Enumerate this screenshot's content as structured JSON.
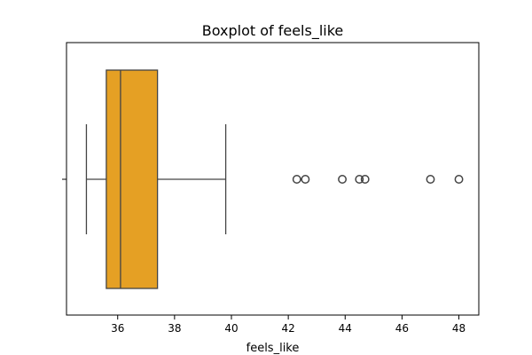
{
  "chart_data": {
    "type": "box",
    "title": "Boxplot of feels_like",
    "xlabel": "feels_like",
    "ylabel": "",
    "orientation": "horizontal",
    "xlim": [
      34.2,
      48.7
    ],
    "x_ticks": [
      36,
      38,
      40,
      42,
      44,
      46,
      48
    ],
    "box": {
      "whisker_low": 34.9,
      "q1": 35.6,
      "median": 36.1,
      "q3": 37.4,
      "whisker_high": 39.8
    },
    "outliers": [
      42.3,
      42.6,
      43.9,
      44.5,
      44.7,
      47.0,
      48.0
    ],
    "colors": {
      "box_fill": "#e5a024",
      "line": "#444444",
      "frame": "#000000"
    },
    "grid": false
  }
}
